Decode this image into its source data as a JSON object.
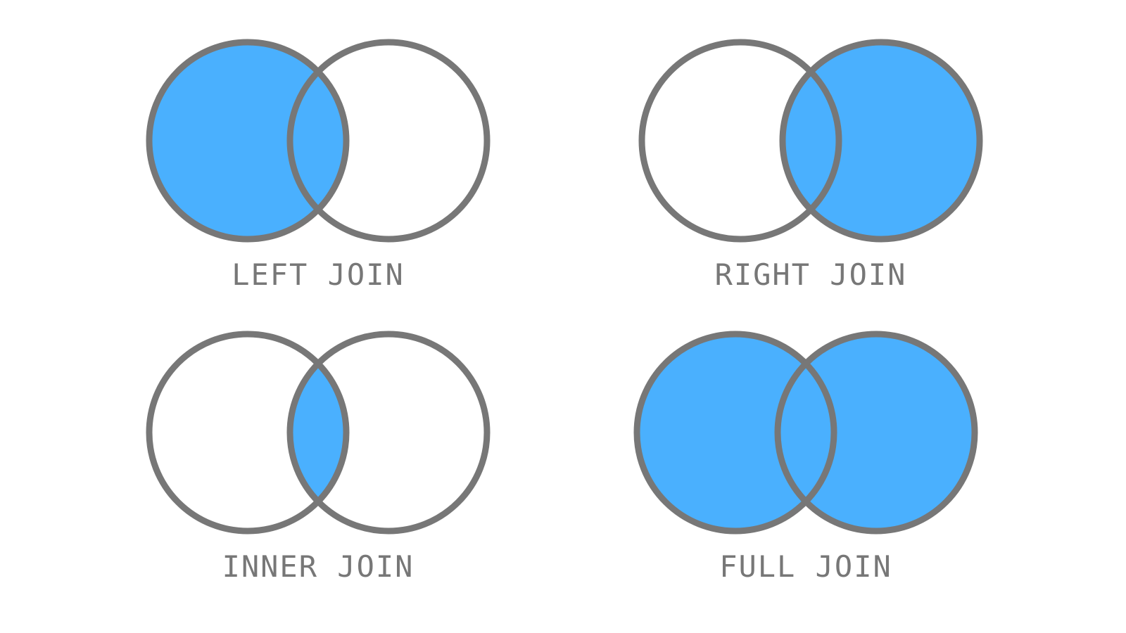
{
  "colors": {
    "fill": "#4ab0fe",
    "stroke": "#777777",
    "background": "#ffffff",
    "label": "#777777"
  },
  "diagrams": [
    {
      "label": "LEFT JOIN",
      "shaded": {
        "left_only": true,
        "intersection": true,
        "right_only": false
      }
    },
    {
      "label": "RIGHT JOIN",
      "shaded": {
        "left_only": false,
        "intersection": true,
        "right_only": true
      }
    },
    {
      "label": "INNER JOIN",
      "shaded": {
        "left_only": false,
        "intersection": true,
        "right_only": false
      }
    },
    {
      "label": "FULL JOIN",
      "shaded": {
        "left_only": true,
        "intersection": true,
        "right_only": true
      }
    }
  ]
}
